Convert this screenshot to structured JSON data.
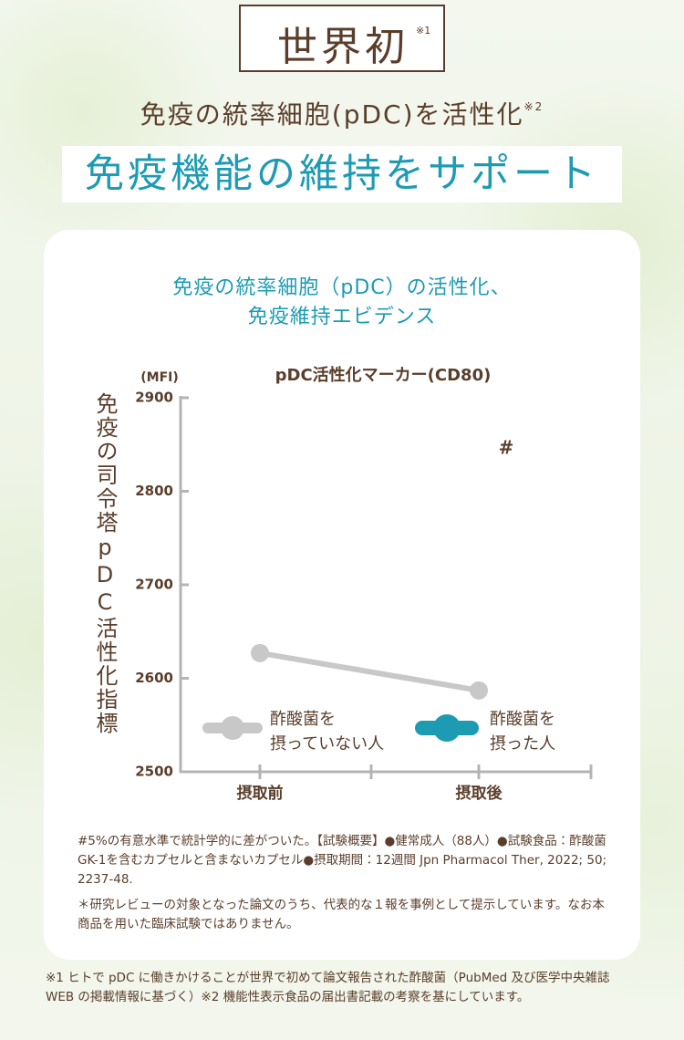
{
  "header": {
    "badge": "世界初",
    "badge_note": "※1",
    "subtitle": "免疫の統率細胞(pDC)を活性化",
    "subtitle_note": "※2",
    "headline": "免疫機能の維持をサポート"
  },
  "card_title": "免疫の統率細胞（pDC）の活性化、\n免疫維持エビデンス",
  "chart_data": {
    "type": "line",
    "title": "pDC活性化マーカー(CD80)",
    "y_unit": "(MFI)",
    "ylabel": "免疫の司令塔pDC活性化指標",
    "categories": [
      "摂取前",
      "摂取後"
    ],
    "series": [
      {
        "name": "酢酸菌を\n摂っていない人",
        "color": "#c8c8c8",
        "values": [
          2627,
          2587
        ]
      },
      {
        "name": "酢酸菌を\n摂った人",
        "color": "#1c9bb2",
        "values": [
          null,
          null
        ]
      }
    ],
    "annotations": [
      {
        "text": "#"
      }
    ],
    "ylim": [
      2500,
      2900
    ],
    "yticks": [
      2500,
      2600,
      2700,
      2800,
      2900
    ]
  },
  "notes": [
    "#5%の有意水準で統計学的に差がついた。【試験概要】●健常成人（88人）●試験食品：酢酸菌GK-1を含むカプセルと含まないカプセル●摂取期間：12週間 Jpn Pharmacol Ther, 2022; 50; 2237-48.",
    "＊研究レビューの対象となった論文のうち、代表的な１報を事例として提示しています。なお本商品を用いた臨床試験ではありません。"
  ],
  "footnote": "※1 ヒトで pDC に働きかけることが世界で初めて論文報告された酢酸菌（PubMed 及び医学中央雑誌 WEB の掲載情報に基づく）※2 機能性表示食品の届出書記載の考察を基にしています。"
}
